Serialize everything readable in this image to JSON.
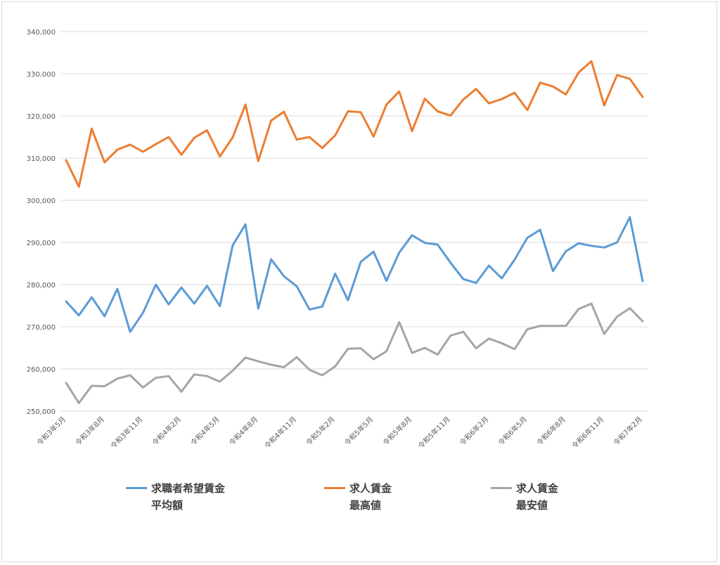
{
  "chart_data": {
    "type": "line",
    "title": "",
    "xlabel": "",
    "ylabel": "",
    "ylim": [
      250000,
      340000
    ],
    "y_ticks": [
      "250,000",
      "260,000",
      "270,000",
      "280,000",
      "290,000",
      "300,000",
      "310,000",
      "320,000",
      "330,000",
      "340,000"
    ],
    "grid": true,
    "legend_position": "bottom",
    "categories": [
      "令和3年5月",
      "令和3年6月",
      "令和3年7月",
      "令和3年8月",
      "令和3年9月",
      "令和3年10月",
      "令和3年11月",
      "令和3年12月",
      "令和4年1月",
      "令和4年2月",
      "令和4年3月",
      "令和4年4月",
      "令和4年5月",
      "令和4年6月",
      "令和4年7月",
      "令和4年8月",
      "令和4年9月",
      "令和4年10月",
      "令和4年11月",
      "令和4年12月",
      "令和5年1月",
      "令和5年2月",
      "令和5年3月",
      "令和5年4月",
      "令和5年5月",
      "令和5年6月",
      "令和5年7月",
      "令和5年8月",
      "令和5年9月",
      "令和5年10月",
      "令和5年11月",
      "令和5年12月",
      "令和6年1月",
      "令和6年2月",
      "令和6年3月",
      "令和6年4月",
      "令和6年5月",
      "令和6年6月",
      "令和6年7月",
      "令和6年8月",
      "令和6年9月",
      "令和6年10月",
      "令和6年11月",
      "令和6年12月",
      "令和7年1月",
      "令和7年2月"
    ],
    "tick_labels": [
      {
        "index": 0,
        "label": "令和3年5月"
      },
      {
        "index": 3,
        "label": "令和3年8月"
      },
      {
        "index": 6,
        "label": "令和3年11月"
      },
      {
        "index": 9,
        "label": "令和4年2月"
      },
      {
        "index": 12,
        "label": "令和4年5月"
      },
      {
        "index": 15,
        "label": "令和4年8月"
      },
      {
        "index": 18,
        "label": "令和4年11月"
      },
      {
        "index": 21,
        "label": "令和5年2月"
      },
      {
        "index": 24,
        "label": "令和5年5月"
      },
      {
        "index": 27,
        "label": "令和5年8月"
      },
      {
        "index": 30,
        "label": "令和5年11月"
      },
      {
        "index": 33,
        "label": "令和6年2月"
      },
      {
        "index": 36,
        "label": "令和6年5月"
      },
      {
        "index": 39,
        "label": "令和6年8月"
      },
      {
        "index": 42,
        "label": "令和6年11月"
      },
      {
        "index": 45,
        "label": "令和7年2月"
      }
    ],
    "series": [
      {
        "name": "求職者希望賃金\n平均額",
        "color": "#5b9bd5",
        "values": [
          276000,
          272700,
          277000,
          272500,
          279000,
          268800,
          273300,
          280000,
          275300,
          279300,
          275500,
          279700,
          274900,
          289300,
          294300,
          274300,
          286000,
          282000,
          279600,
          274100,
          274800,
          282600,
          276300,
          285400,
          287800,
          280900,
          287600,
          291700,
          289900,
          289500,
          285200,
          281300,
          280400,
          284500,
          281500,
          285900,
          291100,
          293000,
          283200,
          287900,
          289800,
          289200,
          288800,
          290000,
          296000,
          280800
        ]
      },
      {
        "name": "求人賃金\n最高値",
        "color": "#ed7d31",
        "values": [
          309500,
          303200,
          317000,
          309000,
          312000,
          313200,
          311500,
          313300,
          315000,
          310800,
          314800,
          316600,
          310400,
          314900,
          322700,
          309300,
          318900,
          321000,
          314400,
          315000,
          312400,
          315400,
          321100,
          320900,
          315100,
          322700,
          325800,
          316400,
          324100,
          321100,
          320100,
          323900,
          326400,
          323000,
          324000,
          325500,
          321400,
          327900,
          327000,
          325100,
          330300,
          333000,
          322500,
          329700,
          328800,
          324500
        ]
      },
      {
        "name": "求人賃金\n最安値",
        "color": "#a5a5a5",
        "values": [
          256700,
          251900,
          256000,
          255900,
          257700,
          258500,
          255600,
          257900,
          258300,
          254600,
          258700,
          258300,
          257000,
          259600,
          262700,
          261800,
          261000,
          260400,
          262800,
          259800,
          258500,
          260600,
          264800,
          264900,
          262300,
          264200,
          271100,
          263800,
          265000,
          263400,
          267900,
          268800,
          264900,
          267200,
          266100,
          264700,
          269400,
          270200,
          270200,
          270200,
          274200,
          275500,
          268300,
          272400,
          274400,
          271300
        ]
      }
    ]
  }
}
